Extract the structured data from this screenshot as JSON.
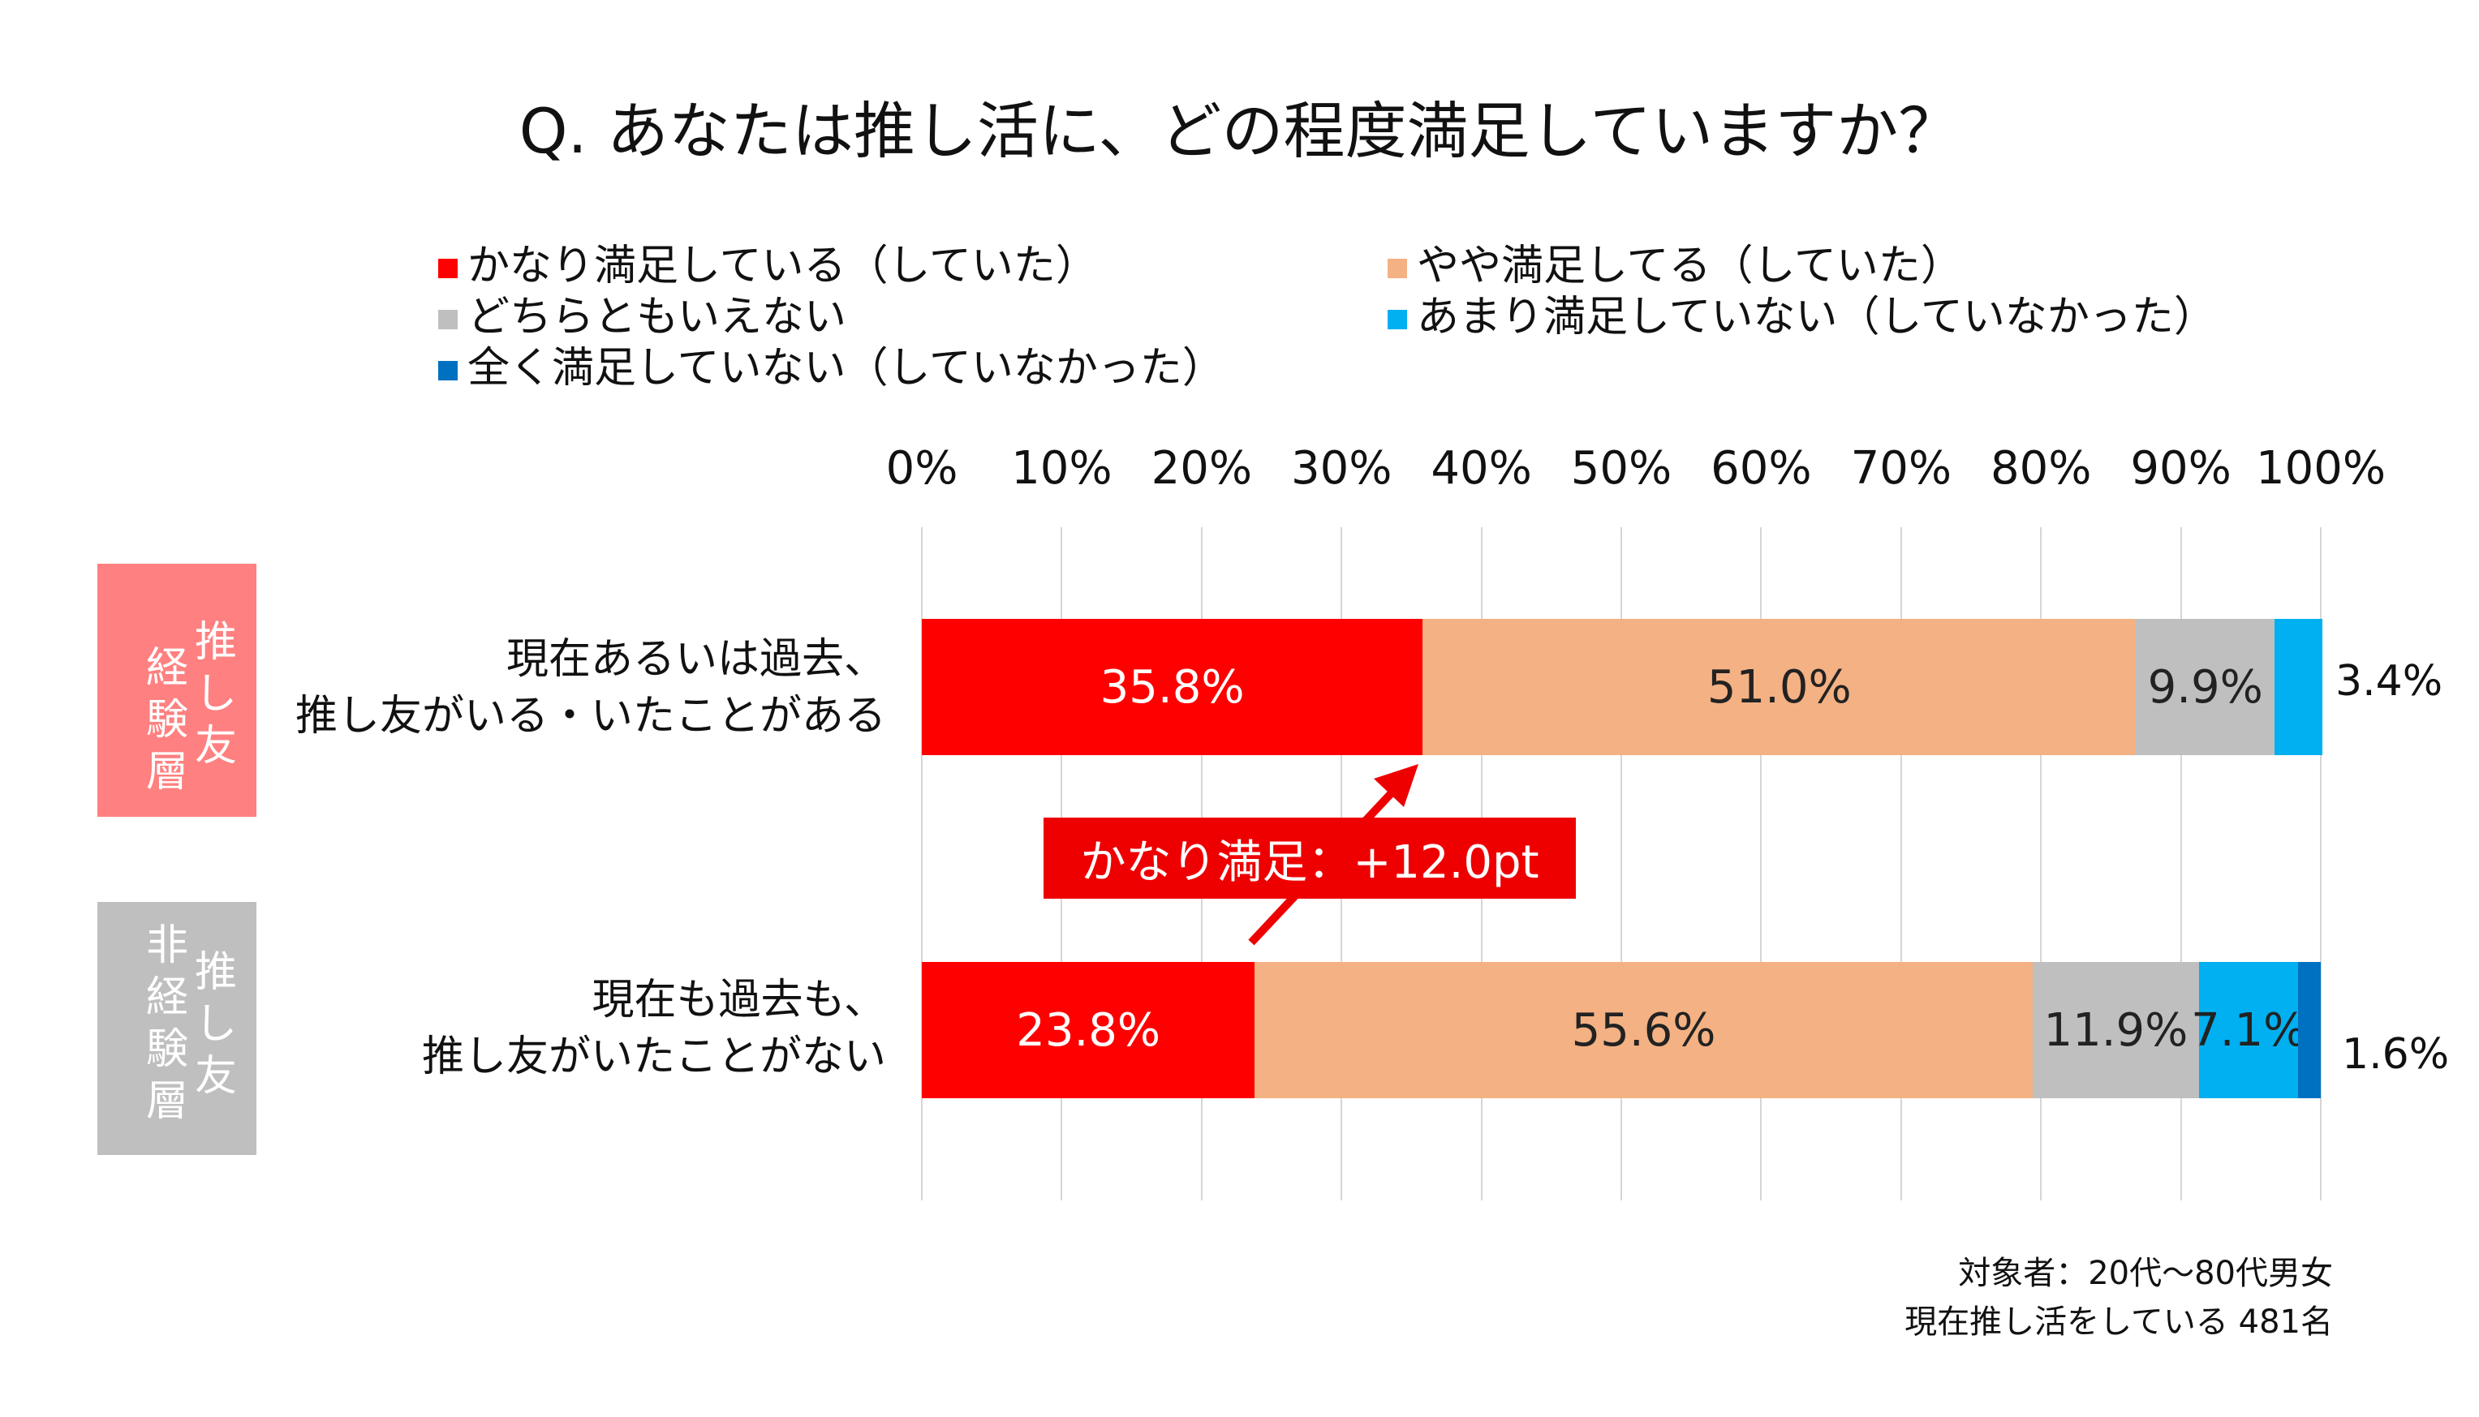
{
  "title": "Q. あなたは推し活に、どの程度満足していますか？",
  "legend": [
    {
      "label": "かなり満足している（していた）",
      "color": "#ff0000"
    },
    {
      "label": "やや満足してる（していた）",
      "color": "#f4b183"
    },
    {
      "label": "どちらともいえない",
      "color": "#bfbfbf"
    },
    {
      "label": "あまり満足していない（していなかった）",
      "color": "#00b0f0"
    },
    {
      "label": "全く満足していない（していなかった）",
      "color": "#0070c0"
    }
  ],
  "groups": [
    {
      "box_col1": "経験層",
      "box_col2": "推し友",
      "line1": "現在あるいは過去、",
      "line2": "推し友がいる・いたことがある",
      "box_color": "#ff8080"
    },
    {
      "box_col1": "非経験層",
      "box_col2": "推し友",
      "line1": "現在も過去も、",
      "line2": "推し友がいたことがない",
      "box_color": "#bfbfbf"
    }
  ],
  "callout": "かなり満足：+12.0pt",
  "note_line1": "対象者：20代～80代男女",
  "note_line2": "現在推し活をしている 481名",
  "chart_data": {
    "type": "bar",
    "orientation": "horizontal",
    "stacked": true,
    "categories": [
      "現在あるいは過去、推し友がいる・いたことがある",
      "現在も過去も、推し友がいたことがない"
    ],
    "series": [
      {
        "name": "かなり満足している（していた）",
        "values": [
          35.8,
          23.8
        ],
        "labels": [
          "35.8%",
          "23.8%"
        ]
      },
      {
        "name": "やや満足してる（していた）",
        "values": [
          51.0,
          55.6
        ],
        "labels": [
          "51.0%",
          "55.6%"
        ]
      },
      {
        "name": "どちらともいえない",
        "values": [
          9.9,
          11.9
        ],
        "labels": [
          "9.9%",
          "11.9%"
        ]
      },
      {
        "name": "あまり満足していない（していなかった）",
        "values": [
          3.4,
          7.1
        ],
        "labels": [
          "3.4%",
          "7.1%"
        ]
      },
      {
        "name": "全く満足していない（していなかった）",
        "values": [
          0.0,
          1.6
        ],
        "labels": [
          "",
          "1.6%"
        ]
      }
    ],
    "xlim": [
      0,
      100
    ],
    "xticks": [
      "0%",
      "10%",
      "20%",
      "30%",
      "40%",
      "50%",
      "60%",
      "70%",
      "80%",
      "90%",
      "100%"
    ],
    "grid": true,
    "legend_position": "top"
  }
}
